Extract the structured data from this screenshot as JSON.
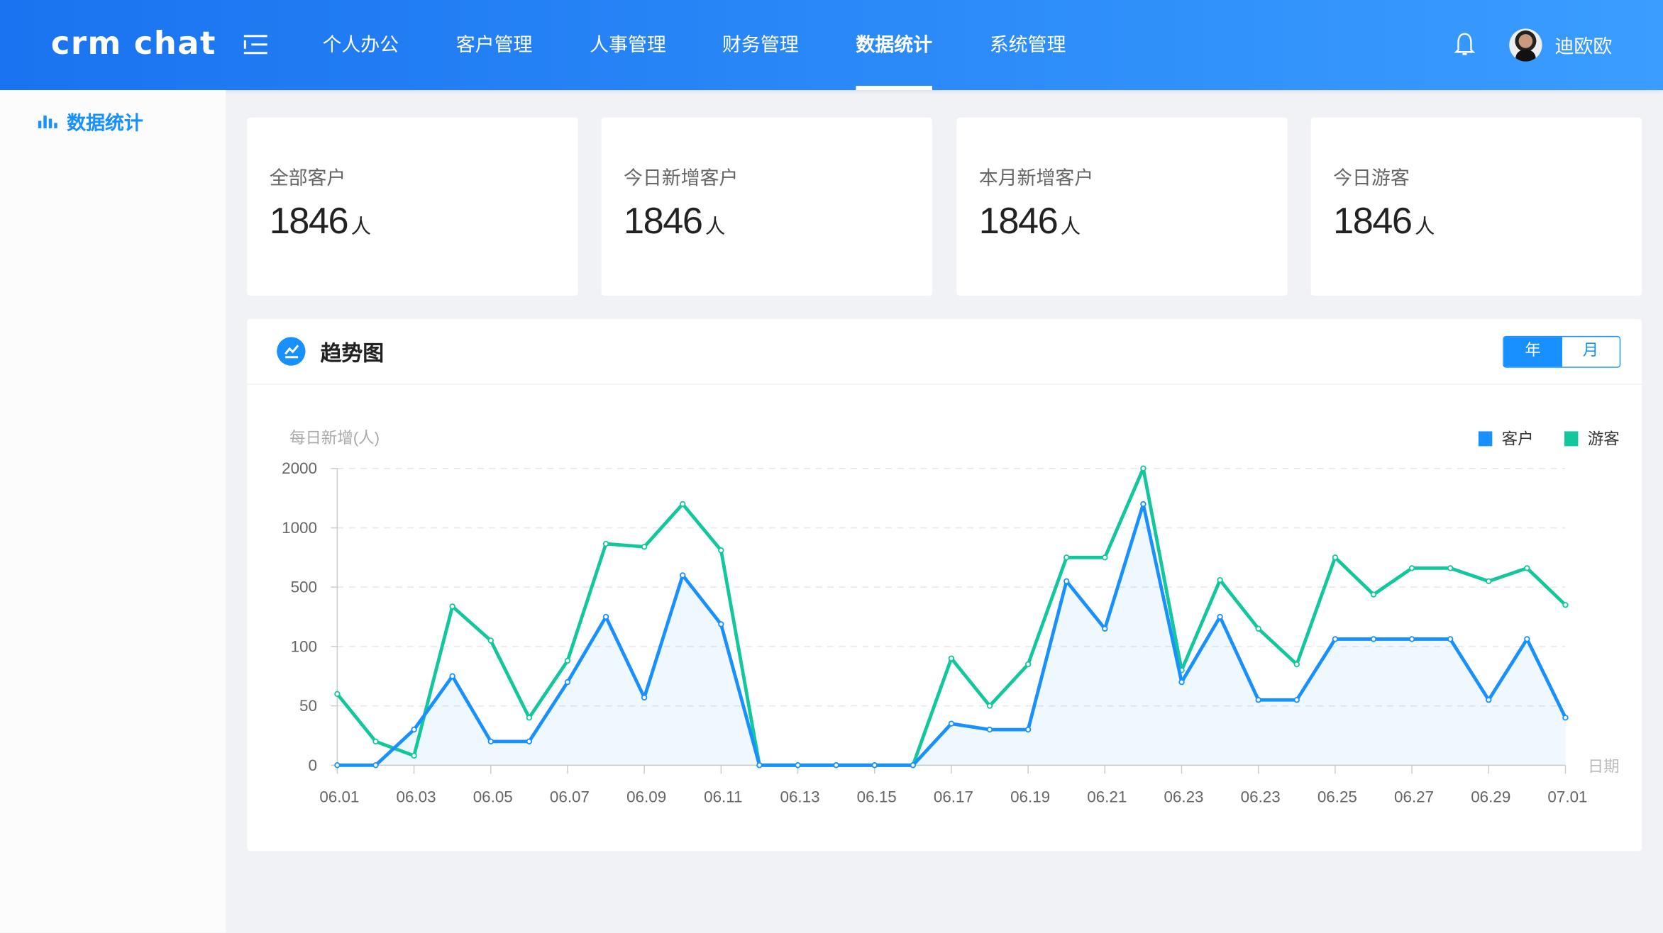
{
  "header": {
    "logo": "crm chat",
    "nav": [
      {
        "label": "个人办公",
        "active": false
      },
      {
        "label": "客户管理",
        "active": false
      },
      {
        "label": "人事管理",
        "active": false
      },
      {
        "label": "财务管理",
        "active": false
      },
      {
        "label": "数据统计",
        "active": true
      },
      {
        "label": "系统管理",
        "active": false
      }
    ],
    "user_name": "迪欧欧",
    "icons": {
      "menu": "menu-fold-icon",
      "bell": "bell-icon"
    }
  },
  "sidebar": {
    "items": [
      {
        "label": "数据统计",
        "icon": "bar-chart-icon",
        "active": true
      }
    ]
  },
  "cards": [
    {
      "label": "全部客户",
      "value": "1846",
      "unit": "人"
    },
    {
      "label": "今日新增客户",
      "value": "1846",
      "unit": "人"
    },
    {
      "label": "本月新增客户",
      "value": "1846",
      "unit": "人"
    },
    {
      "label": "今日游客",
      "value": "1846",
      "unit": "人"
    }
  ],
  "panel": {
    "title": "趋势图",
    "toggle": {
      "options": [
        "年",
        "月"
      ],
      "selected": "年"
    }
  },
  "chart_data": {
    "type": "line",
    "ylabel": "每日新增(人)",
    "xlabel": "日期",
    "y_ticks": [
      0,
      50,
      100,
      500,
      1000,
      2000
    ],
    "y_scale": "piecewise-category",
    "x_tick_labels": [
      "06.01",
      "06.03",
      "06.05",
      "06.07",
      "06.09",
      "06.11",
      "06.13",
      "06.15",
      "06.17",
      "06.19",
      "06.21",
      "06.23",
      "06.23",
      "06.25",
      "06.27",
      "06.29",
      "07.01"
    ],
    "grid": true,
    "legend": "top-right",
    "series": [
      {
        "name": "客户",
        "color": "#1890ff",
        "area": true,
        "values": [
          0,
          0,
          30,
          75,
          20,
          20,
          70,
          300,
          57,
          600,
          250,
          0,
          0,
          0,
          0,
          0,
          35,
          30,
          30,
          550,
          220,
          1400,
          70,
          300,
          55,
          55,
          150,
          150,
          150,
          150,
          55,
          150,
          40
        ]
      },
      {
        "name": "游客",
        "color": "#13c79c",
        "area": false,
        "values": [
          60,
          20,
          8,
          370,
          140,
          40,
          88,
          865,
          840,
          1400,
          810,
          0,
          0,
          0,
          0,
          0,
          90,
          50,
          85,
          750,
          750,
          2000,
          80,
          560,
          220,
          85,
          750,
          450,
          660,
          660,
          550,
          660,
          380
        ]
      }
    ]
  }
}
